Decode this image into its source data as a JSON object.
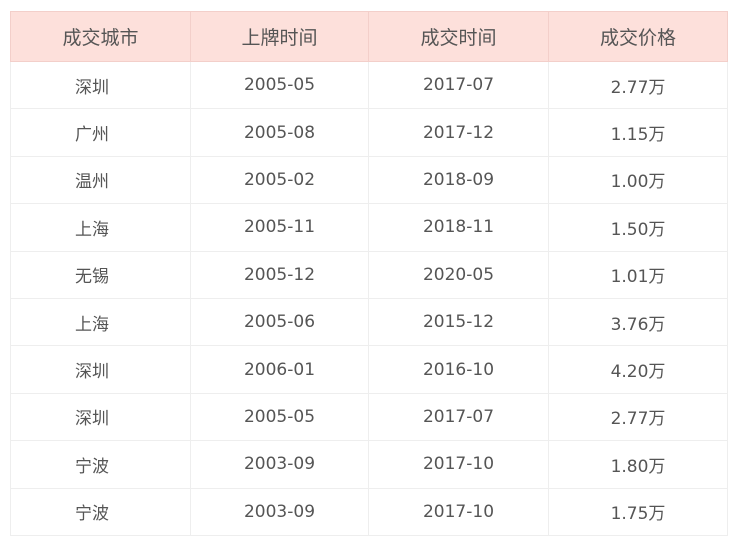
{
  "table": {
    "headers": [
      "成交城市",
      "上牌时间",
      "成交时间",
      "成交价格"
    ],
    "rows": [
      [
        "深圳",
        "2005-05",
        "2017-07",
        "2.77万"
      ],
      [
        "广州",
        "2005-08",
        "2017-12",
        "1.15万"
      ],
      [
        "温州",
        "2005-02",
        "2018-09",
        "1.00万"
      ],
      [
        "上海",
        "2005-11",
        "2018-11",
        "1.50万"
      ],
      [
        "无锡",
        "2005-12",
        "2020-05",
        "1.01万"
      ],
      [
        "上海",
        "2005-06",
        "2015-12",
        "3.76万"
      ],
      [
        "深圳",
        "2006-01",
        "2016-10",
        "4.20万"
      ],
      [
        "深圳",
        "2005-05",
        "2017-07",
        "2.77万"
      ],
      [
        "宁波",
        "2003-09",
        "2017-10",
        "1.80万"
      ],
      [
        "宁波",
        "2003-09",
        "2017-10",
        "1.75万"
      ]
    ]
  },
  "colors": {
    "header_bg": "#fde0db",
    "text": "#555555"
  }
}
